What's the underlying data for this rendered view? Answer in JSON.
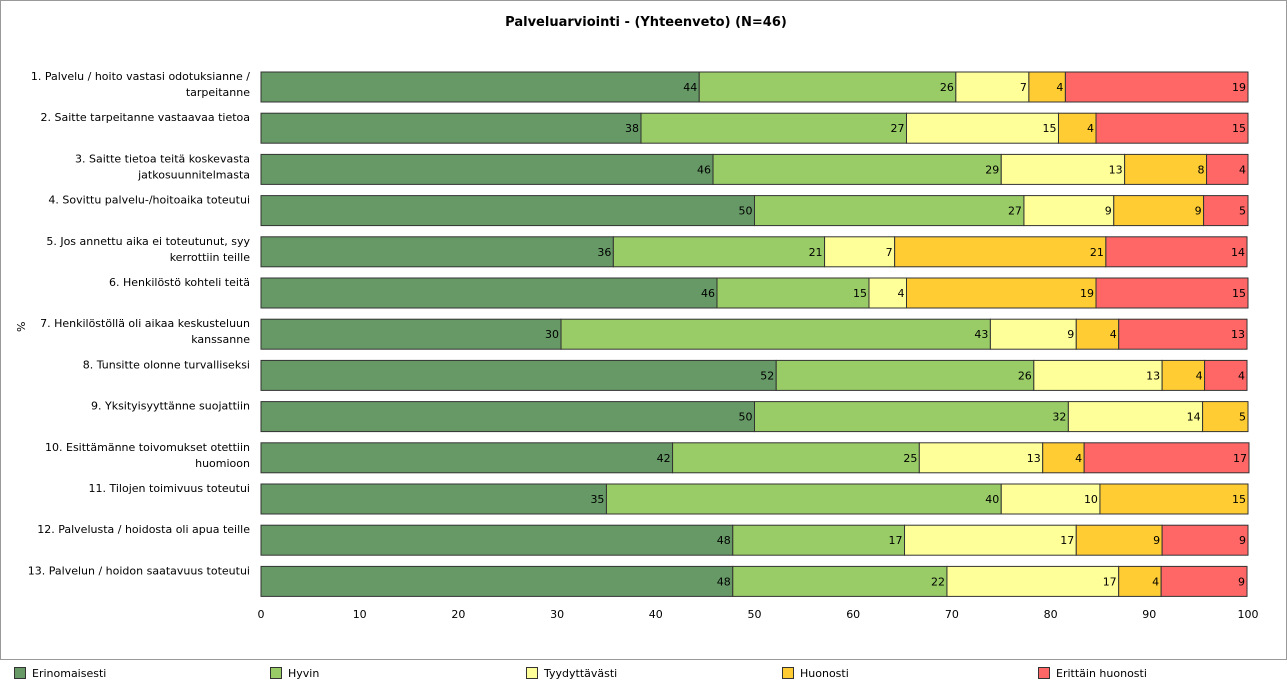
{
  "chart_data": {
    "type": "bar",
    "orientation": "horizontal",
    "stacked": true,
    "title": "Palveluarviointi -  (Yhteenveto) (N=46)",
    "xlabel": "",
    "ylabel": "%",
    "xlim": [
      0,
      100
    ],
    "xticks": [
      0,
      10,
      20,
      30,
      40,
      50,
      60,
      70,
      80,
      90,
      100
    ],
    "grid": false,
    "legend_position": "bottom",
    "categories": [
      [
        "1. Palvelu / hoito vastasi odotuksianne /",
        "tarpeitanne"
      ],
      [
        "2. Saitte tarpeitanne vastaavaa tietoa"
      ],
      [
        "3. Saitte tietoa teitä koskevasta",
        "jatkosuunnitelmasta"
      ],
      [
        "4. Sovittu palvelu-/hoitoaika toteutui"
      ],
      [
        "5. Jos annettu aika ei toteutunut, syy",
        "kerrottiin teille"
      ],
      [
        "6. Henkilöstö kohteli teitä"
      ],
      [
        "7. Henkilöstöllä oli aikaa keskusteluun",
        "kanssanne"
      ],
      [
        "8. Tunsitte olonne turvalliseksi"
      ],
      [
        "9. Yksityisyyttänne suojattiin"
      ],
      [
        "10. Esittämänne toivomukset otettiin",
        "huomioon"
      ],
      [
        "11. Tilojen toimivuus toteutui"
      ],
      [
        "12. Palvelusta / hoidosta oli apua teille"
      ],
      [
        "13. Palvelun / hoidon saatavuus toteutui"
      ]
    ],
    "series": [
      {
        "name": "Erinomaisesti",
        "color": "#669966",
        "values": [
          44.4,
          38.5,
          45.8,
          50.0,
          35.7,
          46.2,
          30.4,
          52.2,
          50.0,
          41.7,
          35.0,
          47.8,
          47.8
        ],
        "labels": [
          "44",
          "38",
          "46",
          "50",
          "36",
          "46",
          "30",
          "52",
          "50",
          "42",
          "35",
          "48",
          "48"
        ]
      },
      {
        "name": "Hyvin",
        "color": "#99cc66",
        "values": [
          26.0,
          26.9,
          29.2,
          27.3,
          21.4,
          15.4,
          43.5,
          26.1,
          31.8,
          25.0,
          40.0,
          17.4,
          21.7
        ],
        "labels": [
          "26",
          "27",
          "29",
          "27",
          "21",
          "15",
          "43",
          "26",
          "32",
          "25",
          "40",
          "17",
          "22"
        ]
      },
      {
        "name": "Tyydyttävästi",
        "color": "#ffff99",
        "values": [
          7.4,
          15.4,
          12.5,
          9.1,
          7.1,
          3.8,
          8.7,
          13.0,
          13.6,
          12.5,
          10.0,
          17.4,
          17.4
        ],
        "labels": [
          "7",
          "15",
          "13",
          "9",
          "7",
          "4",
          "9",
          "13",
          "14",
          "13",
          "10",
          "17",
          "17"
        ]
      },
      {
        "name": "Huonosti",
        "color": "#ffcc33",
        "values": [
          3.7,
          3.8,
          8.3,
          9.1,
          21.4,
          19.2,
          4.3,
          4.3,
          4.6,
          4.2,
          15.0,
          8.7,
          4.3
        ],
        "labels": [
          "4",
          "4",
          "8",
          "9",
          "21",
          "19",
          "4",
          "4",
          "5",
          "4",
          "15",
          "9",
          "4"
        ]
      },
      {
        "name": "Erittäin huonosti",
        "color": "#ff6666",
        "values": [
          18.5,
          15.4,
          4.2,
          4.5,
          14.3,
          15.4,
          13.0,
          4.3,
          0,
          16.7,
          0,
          8.7,
          8.7
        ],
        "labels": [
          "19",
          "15",
          "4",
          "5",
          "14",
          "15",
          "13",
          "4",
          "0",
          "17",
          "0",
          "9",
          "9"
        ]
      }
    ]
  }
}
